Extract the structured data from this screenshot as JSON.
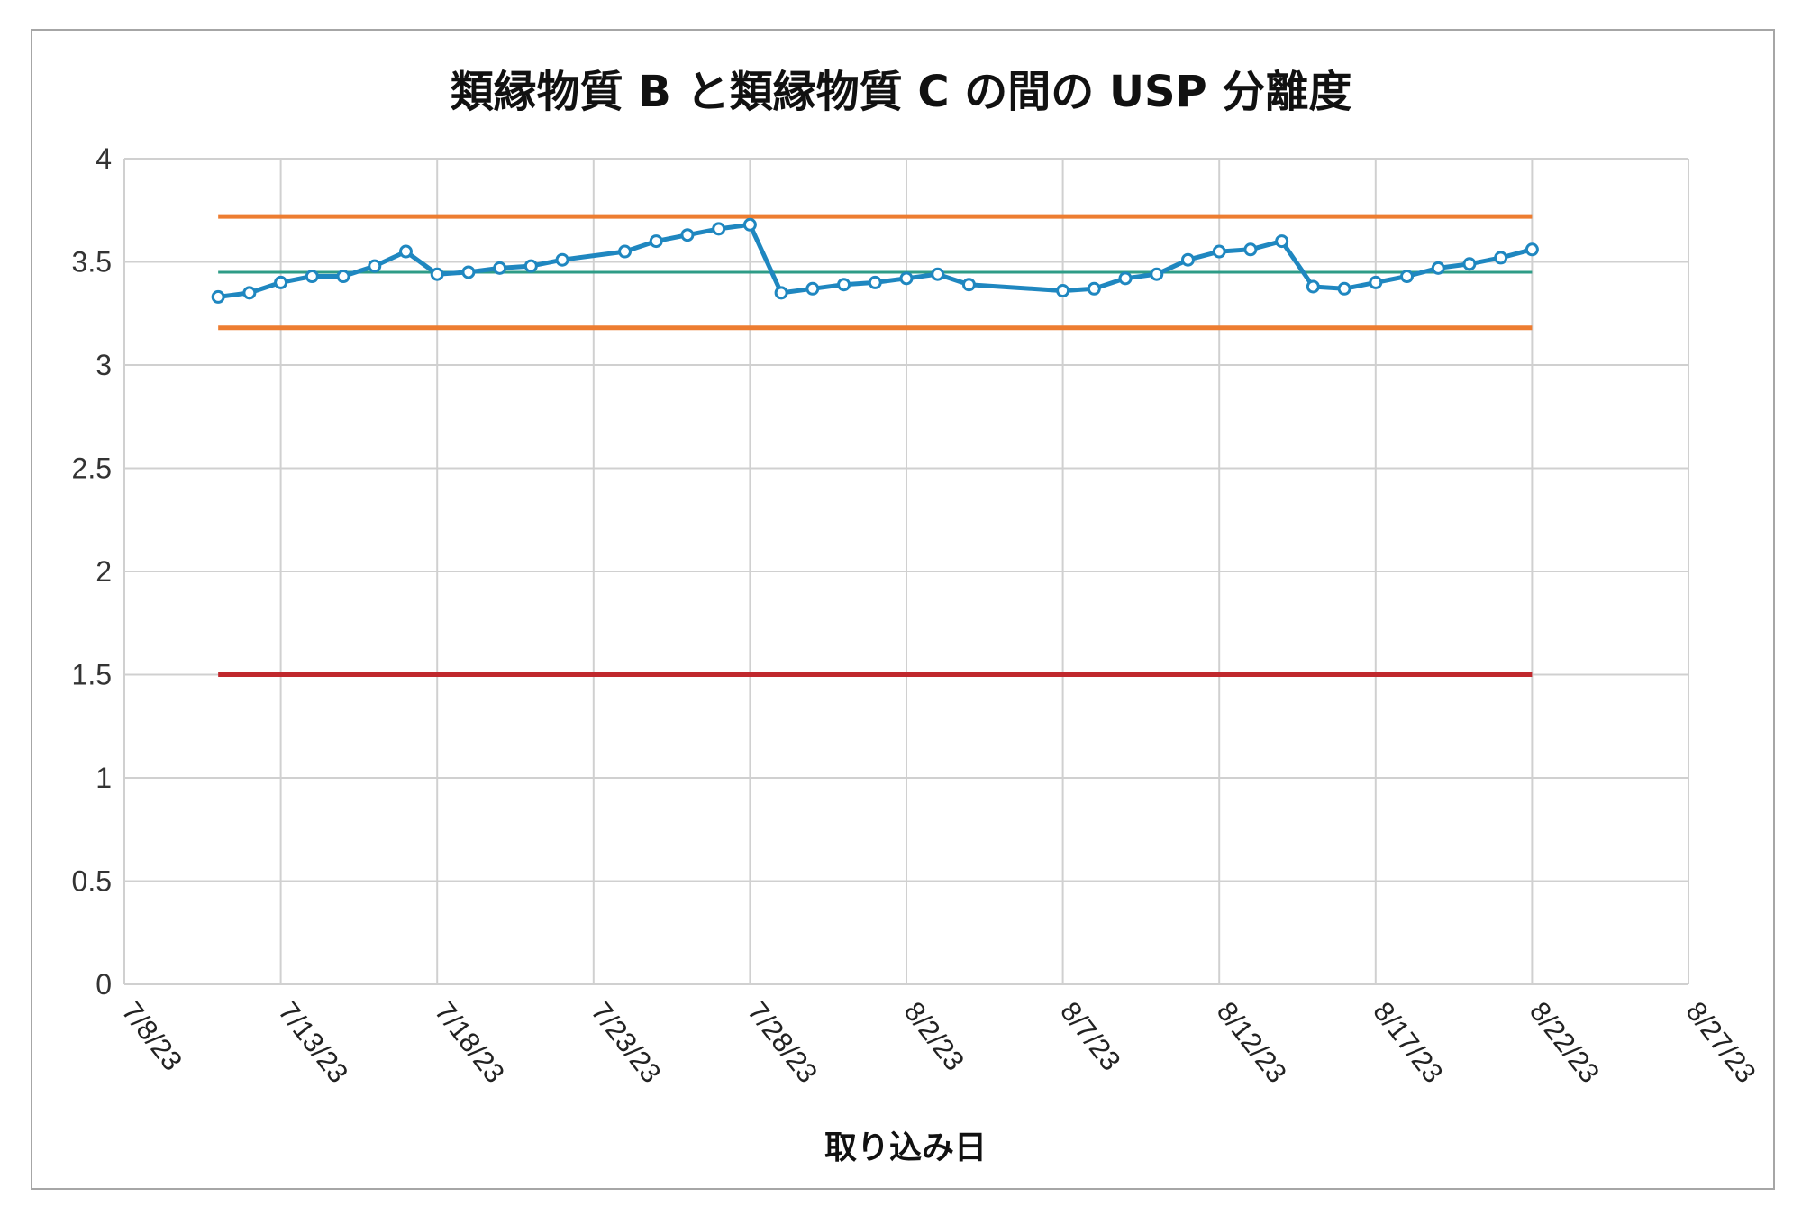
{
  "chart_data": {
    "type": "line",
    "title": "類縁物質 B と類縁物質 C の間の USP 分離度",
    "xlabel": "取り込み日",
    "ylabel": "",
    "ylim": [
      0,
      4
    ],
    "y_ticks": [
      "0",
      "0.5",
      "1",
      "1.5",
      "2",
      "2.5",
      "3",
      "3.5",
      "4"
    ],
    "x_ticks": [
      "7/8/23",
      "7/13/23",
      "7/18/23",
      "7/23/23",
      "7/28/23",
      "8/2/23",
      "8/7/23",
      "8/12/23",
      "8/17/23",
      "8/22/23",
      "8/27/23"
    ],
    "x_range": [
      "2023-07-08",
      "2023-08-27"
    ],
    "grid": true,
    "series": [
      {
        "color": "#1f87c0",
        "markers": true,
        "points": [
          {
            "x": "2023-07-11",
            "y": 3.33
          },
          {
            "x": "2023-07-12",
            "y": 3.35
          },
          {
            "x": "2023-07-13",
            "y": 3.4
          },
          {
            "x": "2023-07-14",
            "y": 3.43
          },
          {
            "x": "2023-07-15",
            "y": 3.43
          },
          {
            "x": "2023-07-16",
            "y": 3.48
          },
          {
            "x": "2023-07-17",
            "y": 3.55
          },
          {
            "x": "2023-07-18",
            "y": 3.44
          },
          {
            "x": "2023-07-19",
            "y": 3.45
          },
          {
            "x": "2023-07-20",
            "y": 3.47
          },
          {
            "x": "2023-07-21",
            "y": 3.48
          },
          {
            "x": "2023-07-22",
            "y": 3.51
          },
          {
            "x": "2023-07-24",
            "y": 3.55
          },
          {
            "x": "2023-07-25",
            "y": 3.6
          },
          {
            "x": "2023-07-26",
            "y": 3.63
          },
          {
            "x": "2023-07-27",
            "y": 3.66
          },
          {
            "x": "2023-07-28",
            "y": 3.68
          },
          {
            "x": "2023-07-29",
            "y": 3.35
          },
          {
            "x": "2023-07-30",
            "y": 3.37
          },
          {
            "x": "2023-07-31",
            "y": 3.39
          },
          {
            "x": "2023-08-01",
            "y": 3.4
          },
          {
            "x": "2023-08-02",
            "y": 3.42
          },
          {
            "x": "2023-08-03",
            "y": 3.44
          },
          {
            "x": "2023-08-04",
            "y": 3.39
          },
          {
            "x": "2023-08-07",
            "y": 3.36
          },
          {
            "x": "2023-08-08",
            "y": 3.37
          },
          {
            "x": "2023-08-09",
            "y": 3.42
          },
          {
            "x": "2023-08-10",
            "y": 3.44
          },
          {
            "x": "2023-08-11",
            "y": 3.51
          },
          {
            "x": "2023-08-12",
            "y": 3.55
          },
          {
            "x": "2023-08-13",
            "y": 3.56
          },
          {
            "x": "2023-08-14",
            "y": 3.6
          },
          {
            "x": "2023-08-15",
            "y": 3.38
          },
          {
            "x": "2023-08-16",
            "y": 3.37
          },
          {
            "x": "2023-08-17",
            "y": 3.4
          },
          {
            "x": "2023-08-18",
            "y": 3.43
          },
          {
            "x": "2023-08-19",
            "y": 3.47
          },
          {
            "x": "2023-08-20",
            "y": 3.49
          },
          {
            "x": "2023-08-21",
            "y": 3.52
          },
          {
            "x": "2023-08-22",
            "y": 3.56
          }
        ]
      }
    ],
    "reference_lines": [
      {
        "color": "#ed7d31",
        "y": 3.72,
        "x_start": "2023-07-11",
        "x_end": "2023-08-22"
      },
      {
        "color": "#2e9c87",
        "y": 3.45,
        "x_start": "2023-07-11",
        "x_end": "2023-08-22"
      },
      {
        "color": "#ed7d31",
        "y": 3.18,
        "x_start": "2023-07-11",
        "x_end": "2023-08-22"
      },
      {
        "color": "#c0282d",
        "y": 1.5,
        "x_start": "2023-07-11",
        "x_end": "2023-08-22"
      }
    ]
  }
}
